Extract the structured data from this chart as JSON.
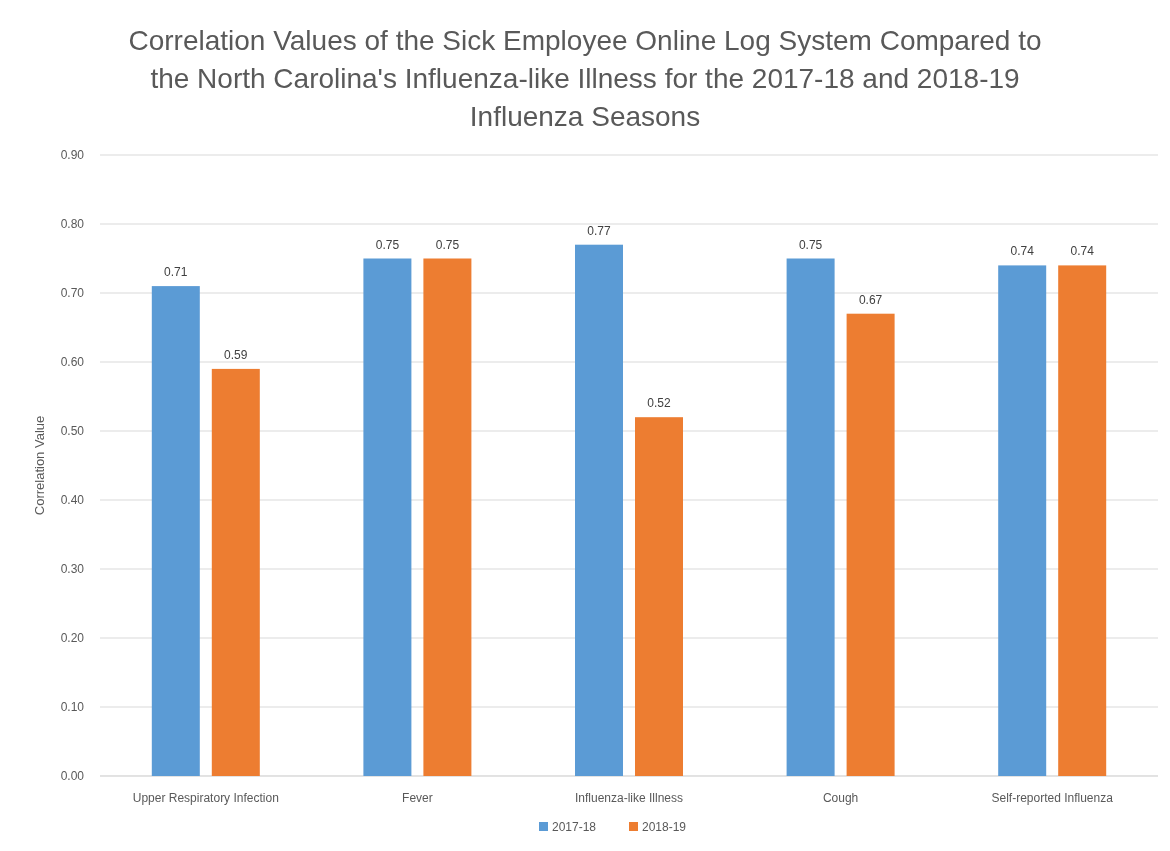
{
  "chart_data": {
    "type": "bar",
    "title": "Correlation Values of the Sick Employee Online Log System Compared to the North Carolina's Influenza-like Illness for the 2017-18 and 2018-19 Influenza Seasons",
    "ylabel": "Correlation Value",
    "categories": [
      "Upper Respiratory Infection",
      "Fever",
      "Influenza-like Illness",
      "Cough",
      "Self-reported Influenza"
    ],
    "series": [
      {
        "name": "2017-18",
        "color": "#5b9bd5",
        "values": [
          0.71,
          0.75,
          0.77,
          0.75,
          0.74
        ]
      },
      {
        "name": "2018-19",
        "color": "#ed7d31",
        "values": [
          0.59,
          0.75,
          0.52,
          0.67,
          0.74
        ]
      }
    ],
    "ylim": [
      0,
      0.9
    ],
    "yticks": [
      {
        "value": 0,
        "label": "0.00"
      },
      {
        "value": 0.1,
        "label": "0.10"
      },
      {
        "value": 0.2,
        "label": "0.20"
      },
      {
        "value": 0.3,
        "label": "0.30"
      },
      {
        "value": 0.4,
        "label": "0.40"
      },
      {
        "value": 0.5,
        "label": "0.50"
      },
      {
        "value": 0.6,
        "label": "0.60"
      },
      {
        "value": 0.7,
        "label": "0.70"
      },
      {
        "value": 0.8,
        "label": "0.80"
      },
      {
        "value": 0.9,
        "label": "0.90"
      }
    ],
    "grid": "y",
    "legend": "bottom",
    "data_labels": true
  }
}
